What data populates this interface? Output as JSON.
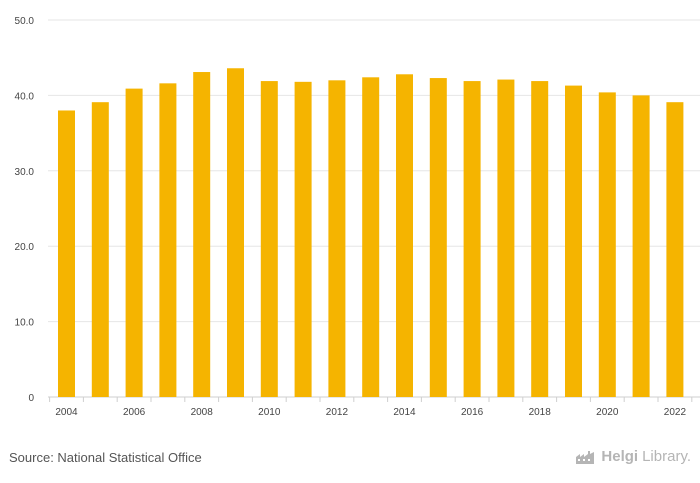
{
  "chart_data": {
    "type": "bar",
    "categories": [
      "2004",
      "2005",
      "2006",
      "2007",
      "2008",
      "2009",
      "2010",
      "2011",
      "2012",
      "2013",
      "2014",
      "2015",
      "2016",
      "2017",
      "2018",
      "2019",
      "2020",
      "2021",
      "2022"
    ],
    "x_tick_labels": [
      "2004",
      "2006",
      "2008",
      "2010",
      "2012",
      "2014",
      "2016",
      "2018",
      "2020",
      "2022"
    ],
    "values": [
      38.0,
      39.1,
      40.9,
      41.6,
      43.1,
      43.6,
      41.9,
      41.8,
      42.0,
      42.4,
      42.8,
      42.3,
      41.9,
      42.1,
      41.9,
      41.3,
      40.4,
      40.0,
      39.1
    ],
    "y_ticks": [
      0,
      10,
      20,
      30,
      40,
      50
    ],
    "y_tick_labels": [
      "0",
      "10.0",
      "20.0",
      "30.0",
      "40.0",
      "50.0"
    ],
    "ylim": [
      0,
      50
    ],
    "grid": true,
    "bar_color": "#f5b400"
  },
  "footer": {
    "source": "Source: National Statistical Office",
    "logo_bold": "Helgi",
    "logo_light": "Library."
  }
}
